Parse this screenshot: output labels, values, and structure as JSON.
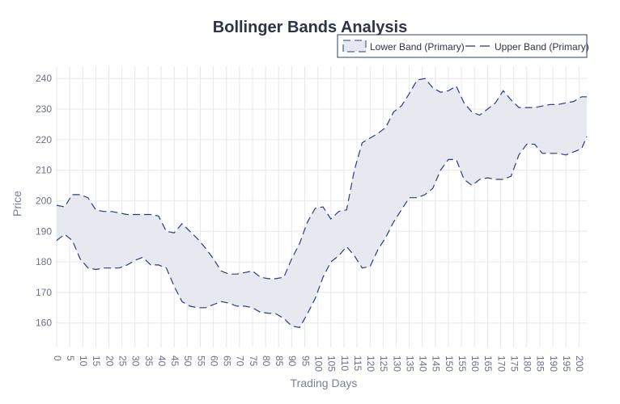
{
  "chart_data": {
    "type": "line",
    "title": "Bollinger Bands Analysis",
    "xlabel": "Trading Days",
    "ylabel": "Price",
    "xlim": [
      0,
      203
    ],
    "ylim": [
      152,
      244
    ],
    "x_ticks": [
      0,
      5,
      10,
      15,
      20,
      25,
      30,
      35,
      40,
      45,
      50,
      55,
      60,
      65,
      70,
      75,
      80,
      85,
      90,
      95,
      100,
      105,
      110,
      115,
      120,
      125,
      130,
      135,
      140,
      145,
      150,
      155,
      160,
      165,
      170,
      175,
      180,
      185,
      190,
      195,
      200
    ],
    "y_ticks": [
      160,
      170,
      180,
      190,
      200,
      210,
      220,
      230,
      240
    ],
    "grid": true,
    "legend_position": "top-right",
    "colors": {
      "band_line": "#2a3f7a",
      "band_fill": "#e6e9f0",
      "grid": "#e6e8ee"
    },
    "x": [
      0,
      3,
      6,
      9,
      12,
      15,
      18,
      21,
      24,
      27,
      30,
      33,
      36,
      39,
      42,
      45,
      48,
      51,
      54,
      57,
      60,
      63,
      66,
      69,
      72,
      75,
      78,
      81,
      84,
      87,
      90,
      93,
      96,
      99,
      102,
      105,
      108,
      111,
      114,
      117,
      120,
      123,
      126,
      129,
      132,
      135,
      138,
      141,
      144,
      147,
      150,
      153,
      156,
      159,
      162,
      165,
      168,
      171,
      174,
      177,
      180,
      183,
      186,
      189,
      192,
      195,
      198,
      201,
      203
    ],
    "series": [
      {
        "name": "Lower Band (Primary)",
        "values": [
          187,
          189,
          187,
          181,
          178,
          177.5,
          178,
          178,
          178,
          179,
          180.5,
          181.5,
          179,
          179,
          178,
          172,
          167,
          165.5,
          165,
          165,
          166,
          167,
          166.5,
          165.5,
          165.5,
          165,
          163.5,
          163.2,
          163,
          161.5,
          159,
          158.5,
          163,
          168,
          175,
          180,
          182,
          185,
          182,
          178,
          178.5,
          184,
          188,
          193,
          197,
          201,
          201,
          202,
          204,
          210,
          213.5,
          213.5,
          207,
          205,
          207,
          207.5,
          207,
          207,
          208,
          215,
          218.5,
          218.5,
          215.5,
          215.5,
          215.5,
          215,
          216,
          217,
          221
        ]
      },
      {
        "name": "Upper Band (Primary)",
        "values": [
          198.5,
          198,
          202,
          202,
          201,
          197,
          196.5,
          196.5,
          196,
          195.5,
          195.5,
          195.5,
          195.5,
          195,
          190,
          189.5,
          192.5,
          190,
          187.5,
          184.5,
          181,
          177,
          176,
          176,
          176.5,
          177,
          175,
          174.5,
          174.5,
          175,
          181,
          186,
          193,
          197.5,
          198,
          194,
          196.5,
          197,
          210,
          219,
          220.5,
          222,
          224,
          229,
          231,
          235,
          239.5,
          240,
          237,
          235.5,
          236,
          237.5,
          232,
          229,
          228,
          230,
          232,
          236,
          233,
          230.5,
          230.5,
          230.5,
          231,
          231.5,
          231.5,
          232,
          232.5,
          234,
          234
        ]
      }
    ]
  }
}
